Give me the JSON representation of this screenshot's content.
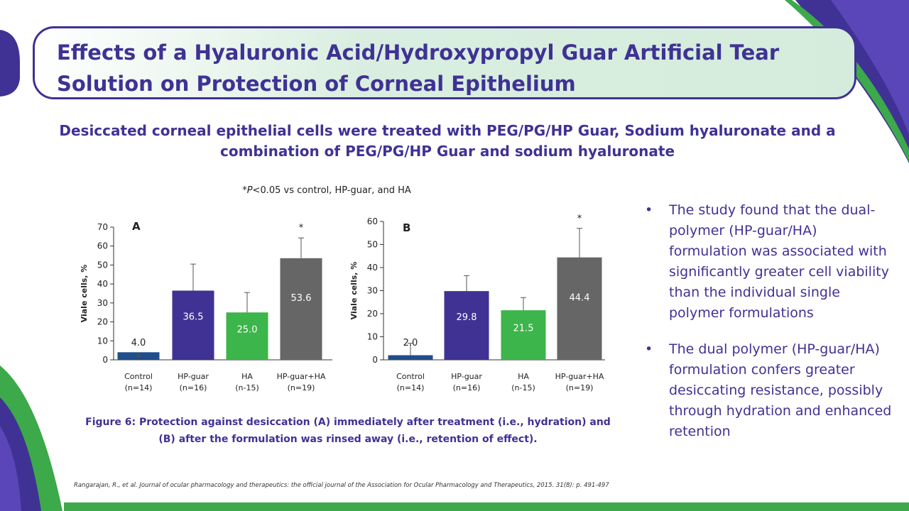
{
  "slide": {
    "title_line1": "Effects of a Hyaluronic Acid/Hydroxypropyl Guar Artificial Tear",
    "title_line2": "Solution on Protection of Corneal Epithelium",
    "subtitle_line1": "Desiccated corneal epithelial cells were treated with PEG/PG/HP Guar, Sodium hyaluronate and a",
    "subtitle_line2": "combination of PEG/PG/HP Guar and sodium hyaluronate",
    "note_prefix": "*",
    "note_p": "P",
    "note_rest": "<0.05 vs control, HP-guar, and HA",
    "caption_line1": "Figure 6: Protection against desiccation (A) immediately after treatment (i.e., hydration) and",
    "caption_line2": "(B) after the formulation was rinsed away (i.e., retention of effect).",
    "bullet_symbol": "•",
    "bullets": [
      "The study found that the dual-polymer (HP-guar/HA) formulation was associated with significantly greater cell viability than the individual single polymer formulations",
      "The dual polymer (HP-guar/HA) formulation confers greater desiccating resistance, possibly through hydration and enhanced retention"
    ],
    "reference": "Rangarajan, R., et al. Journal of ocular pharmacology and therapeutics: the official journal of the Association for Ocular Pharmacology and Therapeutics, 2015. 31(8): p. 491-497"
  },
  "colors": {
    "brand_purple": "#3f3294",
    "brand_green": "#3ca94a",
    "bar_control": "#1f4e8c",
    "bar_hpguar": "#3f3294",
    "bar_ha": "#3cb54a",
    "bar_combo": "#666666"
  },
  "chart_data": [
    {
      "type": "bar",
      "panel": "A",
      "ylabel": "Viale cells, %",
      "ylim": [
        0,
        70
      ],
      "yticks": [
        0,
        10,
        20,
        30,
        40,
        50,
        60,
        70
      ],
      "categories": [
        "Control",
        "HP-guar",
        "HA",
        "HP-guar+HA"
      ],
      "category_n": [
        "(n=14)",
        "(n=16)",
        "(n-15)",
        "(n=19)"
      ],
      "values": [
        4.0,
        36.5,
        25.0,
        53.6
      ],
      "value_labels": [
        "4.0",
        "36.5",
        "25.0",
        "53.6"
      ],
      "error_upper": [
        1.8,
        50.5,
        35.5,
        64.3
      ],
      "significance": [
        "",
        "",
        "",
        "*"
      ]
    },
    {
      "type": "bar",
      "panel": "B",
      "ylabel": "Viale cells, %",
      "ylim": [
        0,
        60
      ],
      "yticks": [
        0,
        10,
        20,
        30,
        40,
        50,
        60
      ],
      "categories": [
        "Control",
        "HP-guar",
        "HA",
        "HP-guar+HA"
      ],
      "category_n": [
        "(n=14)",
        "(n=16)",
        "(n-15)",
        "(n=19)"
      ],
      "values": [
        2.0,
        29.8,
        21.5,
        44.4
      ],
      "value_labels": [
        "2.0",
        "29.8",
        "21.5",
        "44.4"
      ],
      "error_upper": [
        7.2,
        36.5,
        27.0,
        57.0
      ],
      "significance": [
        "",
        "",
        "",
        "*"
      ]
    }
  ]
}
